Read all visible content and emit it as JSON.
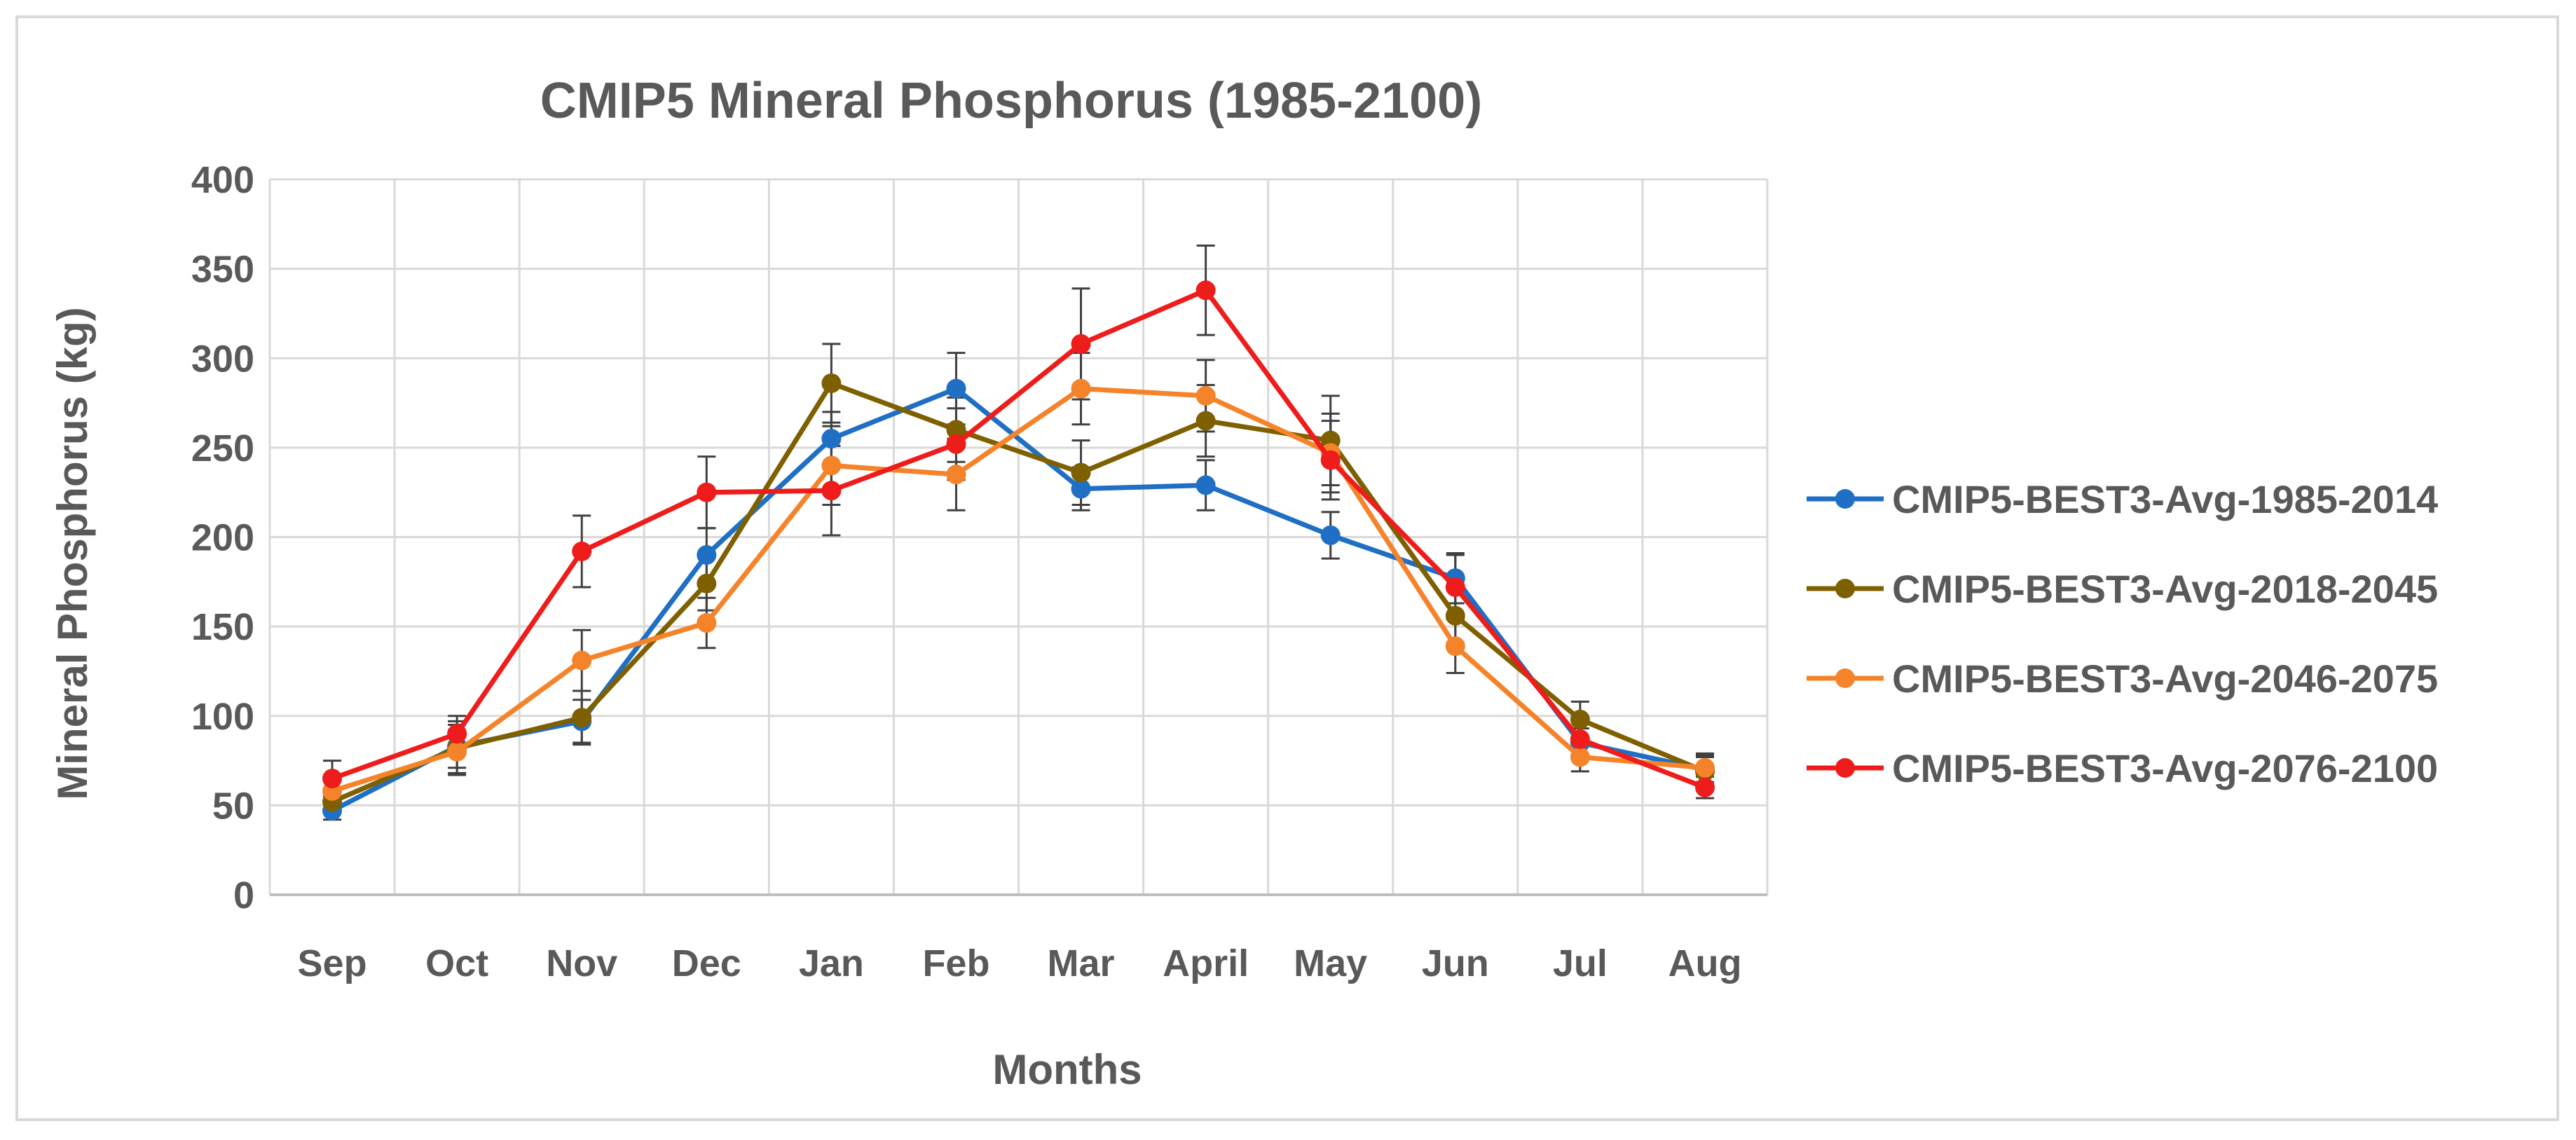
{
  "chart_data": {
    "type": "line",
    "title": "CMIP5 Mineral Phosphorus (1985-2100)",
    "xlabel": "Months",
    "ylabel": "Mineral Phosphorus (kg)",
    "ylim": [
      0,
      400
    ],
    "yticks": [
      "0",
      "50",
      "100",
      "150",
      "200",
      "250",
      "300",
      "350",
      "400"
    ],
    "categories": [
      "Sep",
      "Oct",
      "Nov",
      "Dec",
      "Jan",
      "Feb",
      "Mar",
      "April",
      "May",
      "Jun",
      "Jul",
      "Aug"
    ],
    "grid": true,
    "error_bars": true,
    "legend_position": "right",
    "series": [
      {
        "name": "CMIP5-BEST3-Avg-1985-2014",
        "color": "#1f6fc5",
        "values": [
          47,
          83,
          97,
          190,
          255,
          283,
          227,
          229,
          201,
          177,
          85,
          70
        ],
        "errors": [
          5,
          12,
          12,
          15,
          15,
          20,
          12,
          14,
          13,
          14,
          8,
          8
        ]
      },
      {
        "name": "CMIP5-BEST3-Avg-2018-2045",
        "color": "#7f6000",
        "values": [
          52,
          82,
          99,
          174,
          286,
          260,
          236,
          265,
          254,
          156,
          98,
          69
        ],
        "errors": [
          6,
          15,
          15,
          15,
          22,
          18,
          18,
          20,
          25,
          15,
          10,
          8
        ]
      },
      {
        "name": "CMIP5-BEST3-Avg-2046-2075",
        "color": "#f5832a",
        "values": [
          58,
          80,
          131,
          152,
          240,
          235,
          283,
          279,
          247,
          139,
          77,
          71
        ],
        "errors": [
          6,
          12,
          17,
          14,
          22,
          20,
          20,
          20,
          22,
          15,
          8,
          8
        ]
      },
      {
        "name": "CMIP5-BEST3-Avg-2076-2100",
        "color": "#ef1c1c",
        "values": [
          65,
          90,
          192,
          225,
          226,
          252,
          308,
          338,
          243,
          172,
          87,
          60
        ],
        "errors": [
          10,
          10,
          20,
          20,
          25,
          20,
          31,
          25,
          22,
          18,
          10,
          6
        ]
      }
    ]
  }
}
